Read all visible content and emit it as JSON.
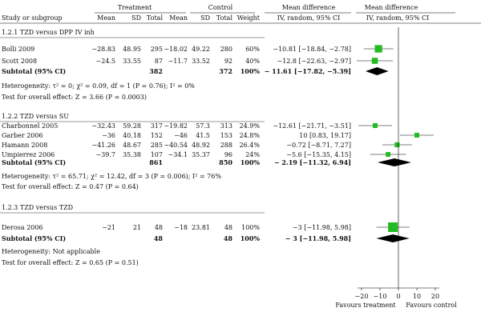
{
  "header": {
    "group_treatment": "Treatment",
    "group_control": "Control",
    "group_md_left": "Mean difference",
    "group_md_right": "Mean difference",
    "study": "Study or subgroup",
    "t_mean": "Mean",
    "t_sd": "SD",
    "t_total": "Total",
    "c_mean": "Mean",
    "c_sd": "SD",
    "c_total": "Total",
    "weight": "Weight",
    "ci_left": "IV, random, 95% CI",
    "ci_right": "IV, random, 95% CI"
  },
  "chart_data": {
    "type": "forest",
    "x_ticks": [
      "−20",
      "−10",
      "0",
      "10",
      "20"
    ],
    "xlim": [
      -20,
      20
    ],
    "footer_left": "Favours treatment",
    "footer_right": "Favours control",
    "subgroups": [
      {
        "title": "1.2.1 TZD versus DPP IV inh",
        "studies": [
          {
            "name": "Bolli 2009",
            "t_mean": "−28.83",
            "t_sd": "48.95",
            "t_n": "295",
            "c_mean": "−18.02",
            "c_sd": "49.22",
            "c_n": "280",
            "weight": "60%",
            "ci_text": "−10.81 [−18.84, −2.78]",
            "md": -10.81,
            "lo": -18.84,
            "hi": -2.78,
            "w": 60
          },
          {
            "name": "Scott 2008",
            "t_mean": "−24.5",
            "t_sd": "33.55",
            "t_n": "87",
            "c_mean": "−11.7",
            "c_sd": "33.52",
            "c_n": "92",
            "weight": "40%",
            "ci_text": "−12.8 [−22.63, −2.97]",
            "md": -12.8,
            "lo": -22.63,
            "hi": -2.97,
            "w": 40
          }
        ],
        "subtotal": {
          "label": "Subtotal (95% CI)",
          "t_n": "382",
          "c_n": "372",
          "weight": "100%",
          "ci_text": "− 11.61 [−17.82, −5.39]",
          "md": -11.61,
          "lo": -17.82,
          "hi": -5.39
        },
        "heterogeneity": "Heterogeneity: τ² = 0; χ² = 0.09, df = 1 (P = 0.76); I² = 0%",
        "overall": "Test for overall effect: Z = 3.66 (P = 0.0003)"
      },
      {
        "title": "1.2.2 TZD versus SU",
        "studies": [
          {
            "name": "Charbonnel 2005",
            "t_mean": "−32.43",
            "t_sd": "59.28",
            "t_n": "317",
            "c_mean": "−19.82",
            "c_sd": "57.3",
            "c_n": "313",
            "weight": "24.9%",
            "ci_text": "−12.61 [−21.71, −3.51]",
            "md": -12.61,
            "lo": -21.71,
            "hi": -3.51,
            "w": 24.9
          },
          {
            "name": "Garber 2006",
            "t_mean": "−36",
            "t_sd": "40.18",
            "t_n": "152",
            "c_mean": "−46",
            "c_sd": "41.5",
            "c_n": "153",
            "weight": "24.8%",
            "ci_text": "10 [0.83, 19.17]",
            "md": 10,
            "lo": 0.83,
            "hi": 19.17,
            "w": 24.8
          },
          {
            "name": "Hamann 2008",
            "t_mean": "−41.26",
            "t_sd": "48.67",
            "t_n": "285",
            "c_mean": "−40.54",
            "c_sd": "48.92",
            "c_n": "288",
            "weight": "26.4%",
            "ci_text": "−0.72 [−8.71, 7.27]",
            "md": -0.72,
            "lo": -8.71,
            "hi": 7.27,
            "w": 26.4
          },
          {
            "name": "Umpierrez 2006",
            "t_mean": "−39.7",
            "t_sd": "35.38",
            "t_n": "107",
            "c_mean": "−34.1",
            "c_sd": "35.37",
            "c_n": "96",
            "weight": "24%",
            "ci_text": "−5.6 [−15.35, 4.15]",
            "md": -5.6,
            "lo": -15.35,
            "hi": 4.15,
            "w": 24
          }
        ],
        "subtotal": {
          "label": "Subtotal (95% CI)",
          "t_n": "861",
          "c_n": "850",
          "weight": "100%",
          "ci_text": "− 2.19 [−11.32, 6.94]",
          "md": -2.19,
          "lo": -11.32,
          "hi": 6.94
        },
        "heterogeneity": "Heterogeneity: τ² = 65.71; χ² = 12.42, df = 3 (P = 0.006); I² = 76%",
        "overall": "Test for overall effect: Z = 0.47 (P = 0.64)"
      },
      {
        "title": "1.2.3 TZD versus TZD",
        "studies": [
          {
            "name": "Derosa 2006",
            "t_mean": "−21",
            "t_sd": "21",
            "t_n": "48",
            "c_mean": "−18",
            "c_sd": "23.81",
            "c_n": "48",
            "weight": "100%",
            "ci_text": "−3 [−11.98, 5.98]",
            "md": -3,
            "lo": -11.98,
            "hi": 5.98,
            "w": 100
          }
        ],
        "subtotal": {
          "label": "Subtotal (95% CI)",
          "t_n": "48",
          "c_n": "48",
          "weight": "100%",
          "ci_text": "− 3 [−11.98, 5.98]",
          "md": -3,
          "lo": -11.98,
          "hi": 5.98
        },
        "heterogeneity": "Heterogeneity: Not applicable",
        "overall": "Test for overall effect: Z = 0.65 (P = 0.51)"
      }
    ],
    "colors": {
      "square": "#22bb22",
      "diamond": "#000000",
      "line": "#000000"
    }
  }
}
